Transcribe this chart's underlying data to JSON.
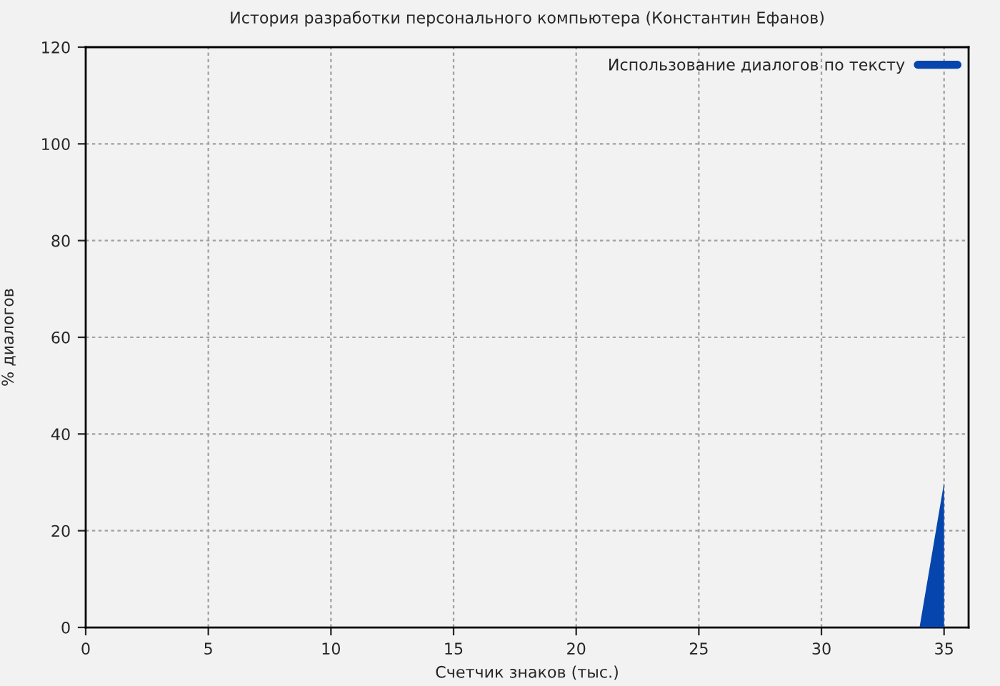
{
  "chart_data": {
    "type": "area",
    "title": "История разработки персонального компьютера (Константин Ефанов)",
    "xlabel": "Счетчик знаков (тыс.)",
    "ylabel": "% диалогов",
    "series": [
      {
        "name": "Использование диалогов по тексту",
        "color": "#0645ad",
        "x": [
          34,
          35
        ],
        "values": [
          0,
          30
        ]
      }
    ],
    "xlim": [
      0,
      36
    ],
    "xticks": [
      0,
      5,
      10,
      15,
      20,
      25,
      30,
      35
    ],
    "ylim": [
      0,
      120
    ],
    "yticks": [
      0,
      20,
      40,
      60,
      80,
      100,
      120
    ],
    "grid": true,
    "legend": "top right"
  }
}
